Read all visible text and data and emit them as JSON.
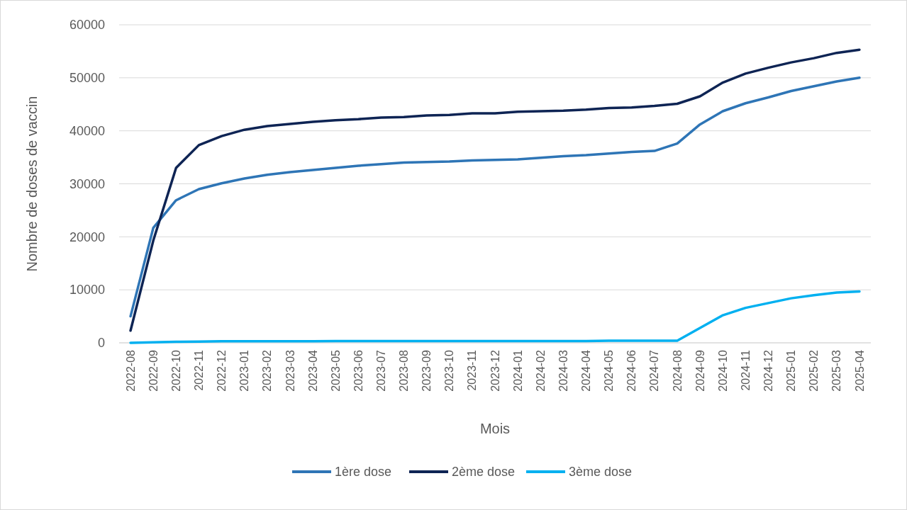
{
  "chart_data": {
    "type": "line",
    "xlabel": "Mois",
    "ylabel": "Nombre de doses de vaccin",
    "categories": [
      "2022-08",
      "2022-09",
      "2022-10",
      "2022-11",
      "2022-12",
      "2023-01",
      "2023-02",
      "2023-03",
      "2023-04",
      "2023-05",
      "2023-06",
      "2023-07",
      "2023-08",
      "2023-09",
      "2023-10",
      "2023-11",
      "2023-12",
      "2024-01",
      "2024-02",
      "2024-03",
      "2024-04",
      "2024-05",
      "2024-06",
      "2024-07",
      "2024-08",
      "2024-09",
      "2024-10",
      "2024-11",
      "2024-12",
      "2025-01",
      "2025-02",
      "2025-03",
      "2025-04"
    ],
    "series": [
      {
        "name": "1ère dose",
        "color": "#2e75b6",
        "values": [
          5000,
          21700,
          26900,
          29000,
          30100,
          31000,
          31700,
          32200,
          32600,
          33000,
          33400,
          33700,
          34000,
          34100,
          34200,
          34400,
          34500,
          34600,
          34900,
          35200,
          35400,
          35700,
          36000,
          36200,
          37600,
          41200,
          43700,
          45200,
          46300,
          47500,
          48400,
          49300,
          50000
        ]
      },
      {
        "name": "2ème dose",
        "color": "#0e2454",
        "values": [
          2300,
          19300,
          33000,
          37300,
          39000,
          40200,
          40900,
          41300,
          41700,
          42000,
          42200,
          42500,
          42600,
          42900,
          43000,
          43300,
          43300,
          43600,
          43700,
          43800,
          44000,
          44300,
          44400,
          44700,
          45100,
          46500,
          49100,
          50800,
          51900,
          52900,
          53700,
          54700,
          55300
        ]
      },
      {
        "name": "3ème dose",
        "color": "#00b0f0",
        "values": [
          0,
          100,
          200,
          250,
          300,
          300,
          300,
          300,
          300,
          350,
          350,
          350,
          350,
          350,
          350,
          350,
          350,
          350,
          350,
          350,
          350,
          400,
          400,
          400,
          400,
          2800,
          5200,
          6600,
          7500,
          8400,
          9000,
          9500,
          9700
        ]
      }
    ],
    "ylim": [
      0,
      60000
    ],
    "yticks": [
      0,
      10000,
      20000,
      30000,
      40000,
      50000,
      60000
    ],
    "grid": "y",
    "legend": "bottom",
    "line_style": "solid",
    "marker": "none"
  }
}
